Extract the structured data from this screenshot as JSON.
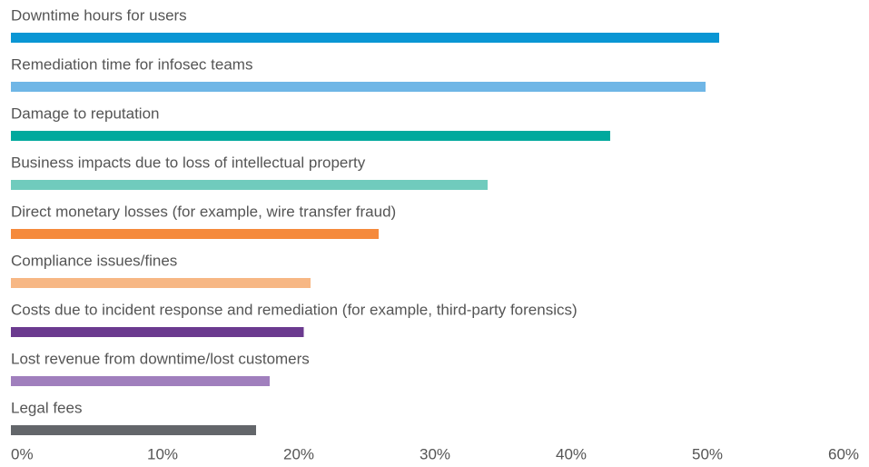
{
  "chart_data": {
    "type": "hbar",
    "categories": [
      "Downtime hours for users",
      "Remediation time for infosec teams",
      "Damage to reputation",
      "Business impacts due to loss of intellectual property",
      "Direct monetary losses (for example, wire transfer fraud)",
      "Compliance issues/fines",
      "Costs due to incident response and remediation (for example, third-party forensics)",
      "Lost revenue from downtime/lost customers",
      "Legal fees"
    ],
    "values": [
      52,
      51,
      44,
      35,
      27,
      22,
      21.5,
      19,
      18
    ],
    "colors": [
      "#0a96d4",
      "#6fb6e6",
      "#00a99d",
      "#70cbbd",
      "#f58a3c",
      "#f7b784",
      "#6b3a8f",
      "#a07fbd",
      "#63666a"
    ],
    "xlim": [
      0,
      60
    ],
    "xticks": [
      {
        "value": 0,
        "label": "0%"
      },
      {
        "value": 10,
        "label": "10%"
      },
      {
        "value": 20,
        "label": "20%"
      },
      {
        "value": 30,
        "label": "30%"
      },
      {
        "value": 40,
        "label": "40%"
      },
      {
        "value": 50,
        "label": "50%"
      },
      {
        "value": 60,
        "label": "60%"
      }
    ]
  }
}
